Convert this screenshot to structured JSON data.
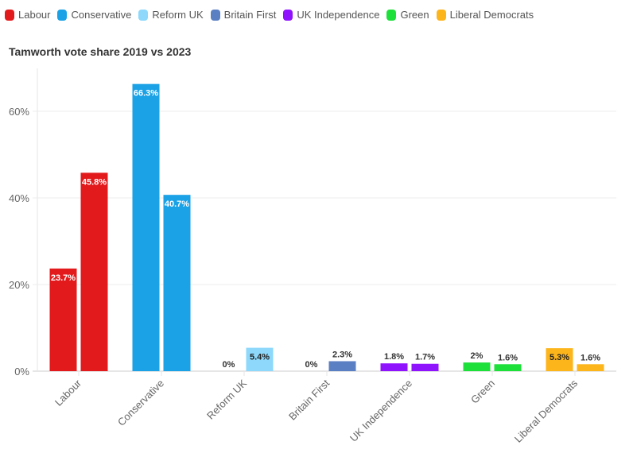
{
  "chart_data": {
    "type": "bar",
    "title": "Tamworth vote share 2019 vs 2023",
    "xlabel": "",
    "ylabel": "",
    "ylim": [
      0,
      70
    ],
    "yticks": [
      0,
      20,
      40,
      60
    ],
    "ytick_format": "{v}%",
    "grid": true,
    "legend_position": "top-left",
    "categories": [
      "Labour",
      "Conservative",
      "Reform UK",
      "Britain First",
      "UK Independence",
      "Green",
      "Liberal Democrats"
    ],
    "colors": [
      "#e31a1c",
      "#1aa1e6",
      "#8dd8fb",
      "#5b7fc3",
      "#9013fe",
      "#1ee03a",
      "#fdb51c"
    ],
    "series": [
      {
        "name": "2019",
        "values": [
          23.7,
          66.3,
          0,
          0,
          1.8,
          2,
          5.3
        ],
        "labels": [
          "23.7%",
          "66.3%",
          "0%",
          "0%",
          "1.8%",
          "2%",
          "5.3%"
        ]
      },
      {
        "name": "2023",
        "values": [
          45.8,
          40.7,
          5.4,
          2.3,
          1.7,
          1.6,
          1.6
        ],
        "labels": [
          "45.8%",
          "40.7%",
          "5.4%",
          "2.3%",
          "1.7%",
          "1.6%",
          "1.6%"
        ]
      }
    ]
  },
  "legend": [
    {
      "label": "Labour",
      "color": "#e31a1c"
    },
    {
      "label": "Conservative",
      "color": "#1aa1e6"
    },
    {
      "label": "Reform UK",
      "color": "#8dd8fb"
    },
    {
      "label": "Britain First",
      "color": "#5b7fc3"
    },
    {
      "label": "UK Independence",
      "color": "#9013fe"
    },
    {
      "label": "Green",
      "color": "#1ee03a"
    },
    {
      "label": "Liberal Democrats",
      "color": "#fdb51c"
    }
  ]
}
